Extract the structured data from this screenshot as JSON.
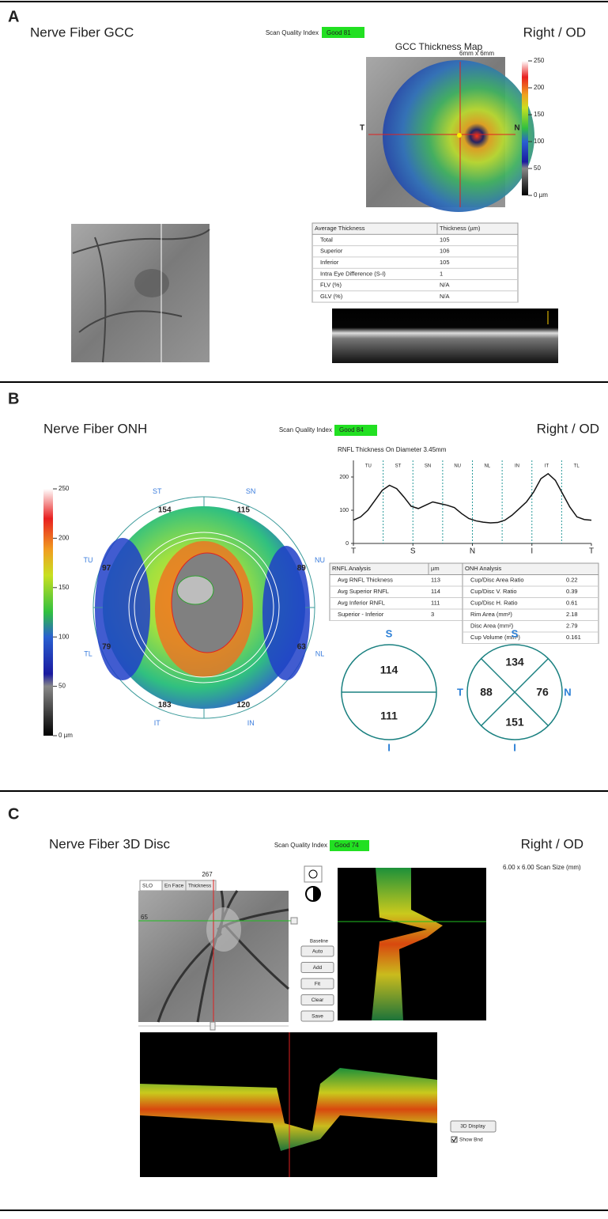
{
  "panel_a": {
    "label": "A",
    "title": "Nerve Fiber GCC",
    "quality_label": "Scan Quality Index",
    "quality": "Good  81",
    "eye": "Right / OD",
    "map_title": "GCC Thickness Map",
    "map_size": "6mm x 6mm",
    "map_left": "T",
    "map_right": "N",
    "colorbar_lim": [
      0,
      250
    ],
    "colorbar_ticks": [
      250,
      200,
      150,
      100,
      50,
      {
        "value": 0,
        "label": "0 µm"
      }
    ],
    "table": {
      "header": [
        "Average Thickness",
        "Thickness (µm)"
      ],
      "rows": [
        [
          "Total",
          105
        ],
        [
          "Superior",
          106
        ],
        [
          "Inferior",
          105
        ],
        [
          "Intra Eye Difference (S-I)",
          1
        ],
        [
          "FLV (%)",
          "N/A"
        ],
        [
          "GLV (%)",
          "N/A"
        ]
      ]
    }
  },
  "panel_b": {
    "label": "B",
    "title": "Nerve Fiber ONH",
    "quality_label": "Scan Quality Index",
    "quality": "Good  84",
    "eye": "Right / OD",
    "colorbar_lim": [
      0,
      250
    ],
    "colorbar_ticks": [
      250,
      200,
      150,
      100,
      50,
      {
        "value": 0,
        "label": "0 µm"
      }
    ],
    "sectors": [
      {
        "name": "ST",
        "value": 154
      },
      {
        "name": "SN",
        "value": 115
      },
      {
        "name": "NU",
        "value": 89
      },
      {
        "name": "NL",
        "value": 63
      },
      {
        "name": "IN",
        "value": 120
      },
      {
        "name": "IT",
        "value": 183
      },
      {
        "name": "TL",
        "value": 79
      },
      {
        "name": "TU",
        "value": 97
      }
    ],
    "profile": {
      "title": "RNFL Thickness On Diameter 3.45mm",
      "sector_labels": [
        "TU",
        "ST",
        "SN",
        "NU",
        "NL",
        "IN",
        "IT",
        "TL"
      ],
      "x_labels": [
        "T",
        "S",
        "N",
        "I",
        "T"
      ],
      "ylim": [
        0,
        250
      ],
      "yticks": [
        0,
        100,
        200
      ],
      "values": [
        70,
        80,
        100,
        130,
        160,
        175,
        165,
        140,
        112,
        105,
        115,
        125,
        120,
        115,
        108,
        90,
        75,
        68,
        64,
        62,
        63,
        70,
        85,
        105,
        125,
        155,
        195,
        210,
        190,
        150,
        110,
        80,
        72,
        70
      ]
    },
    "rnfl_table": {
      "header": [
        "RNFL Analysis",
        "µm"
      ],
      "rows": [
        [
          "Avg RNFL Thickness",
          113
        ],
        [
          "Avg Superior RNFL",
          114
        ],
        [
          "Avg Inferior RNFL",
          111
        ],
        [
          "Superior - Inferior",
          3
        ]
      ]
    },
    "onh_table": {
      "header": [
        "ONH Analysis"
      ],
      "rows": [
        [
          "Cup/Disc Area Ratio",
          0.22
        ],
        [
          "Cup/Disc V. Ratio",
          0.39
        ],
        [
          "Cup/Disc H. Ratio",
          0.61
        ],
        [
          "Rim Area (mm²)",
          2.18
        ],
        [
          "Disc Area (mm²)",
          2.79
        ],
        [
          "Cup Volume (mm³)",
          0.161
        ]
      ]
    },
    "hemifield": {
      "top_label": "S",
      "bottom_label": "I",
      "superior": 114,
      "inferior": 111
    },
    "quadrants": {
      "top_label": "S",
      "bottom_label": "I",
      "left_label": "T",
      "right_label": "N",
      "superior": 134,
      "temporal": 88,
      "nasal": 76,
      "inferior": 151
    }
  },
  "panel_c": {
    "label": "C",
    "title": "Nerve Fiber 3D Disc",
    "quality_label": "Scan Quality Index",
    "quality": "Good  74",
    "eye": "Right / OD",
    "tabs": [
      "SLO",
      "En Face",
      "Thickness"
    ],
    "frame_x": 267,
    "frame_y": 65,
    "scan_size": "6.00 x 6.00 Scan Size (mm)",
    "baseline": "Baseline",
    "buttons": [
      "Auto",
      "Add",
      "Fit",
      "Clear",
      "Save"
    ],
    "display_button": "3D Display",
    "show_bnd": "Show Bnd"
  }
}
